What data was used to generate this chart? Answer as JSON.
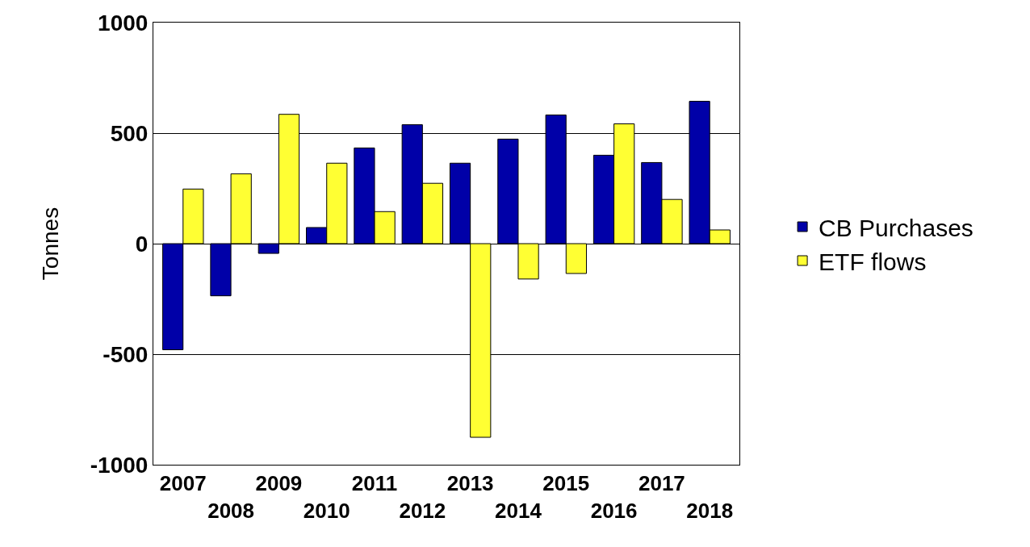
{
  "chart_data": {
    "type": "bar",
    "ylabel": "Tonnes",
    "categories": [
      "2007",
      "2008",
      "2009",
      "2010",
      "2011",
      "2012",
      "2013",
      "2014",
      "2015",
      "2016",
      "2017",
      "2018"
    ],
    "series": [
      {
        "name": "CB Purchases",
        "color": "#0000a8",
        "values": [
          -480,
          -236,
          -44,
          73,
          433,
          538,
          364,
          473,
          582,
          400,
          367,
          644
        ]
      },
      {
        "name": "ETF flows",
        "color": "#ffff33",
        "values": [
          247,
          316,
          585,
          364,
          145,
          273,
          -876,
          -160,
          -135,
          542,
          200,
          62
        ]
      }
    ],
    "ylim": [
      -1000,
      1000
    ],
    "yticks": [
      -1000,
      -500,
      0,
      500,
      1000
    ],
    "grid": "y",
    "legend": "right"
  }
}
